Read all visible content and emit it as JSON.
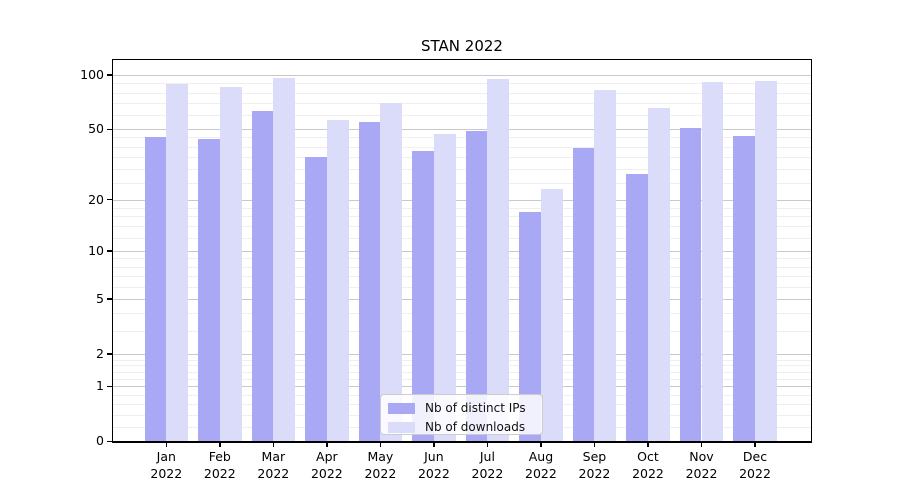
{
  "title": "STAN 2022",
  "chart_data": {
    "type": "bar",
    "title": "STAN 2022",
    "categories": [
      "Jan",
      "Feb",
      "Mar",
      "Apr",
      "May",
      "Jun",
      "Jul",
      "Aug",
      "Sep",
      "Oct",
      "Nov",
      "Dec"
    ],
    "category_year": "2022",
    "series": [
      {
        "name": "Nb of distinct IPs",
        "color": "#a8a8f5",
        "values": [
          45,
          44,
          63,
          35,
          55,
          38,
          49,
          17,
          39,
          28,
          51,
          46
        ]
      },
      {
        "name": "Nb of downloads",
        "color": "#dbdbfa",
        "values": [
          89,
          86,
          96,
          56,
          70,
          47,
          95,
          23,
          83,
          66,
          92,
          93
        ]
      }
    ],
    "yscale": "log1p",
    "ylim": [
      0,
      121
    ],
    "yticks": [
      100,
      50,
      20,
      10,
      5,
      2,
      1,
      0
    ],
    "yticks_minor": [
      0.2,
      0.4,
      0.6,
      0.8,
      1.2,
      1.4,
      1.6,
      1.8,
      3,
      4,
      6,
      7,
      8,
      9,
      12,
      14,
      16,
      18,
      25,
      30,
      35,
      40,
      45,
      60,
      70,
      80,
      90
    ],
    "grid": true,
    "legend_position": "lower center",
    "colors": {
      "grid_major": "#c9c9c9",
      "grid_minor": "#efefef",
      "axis": "#000000"
    }
  }
}
